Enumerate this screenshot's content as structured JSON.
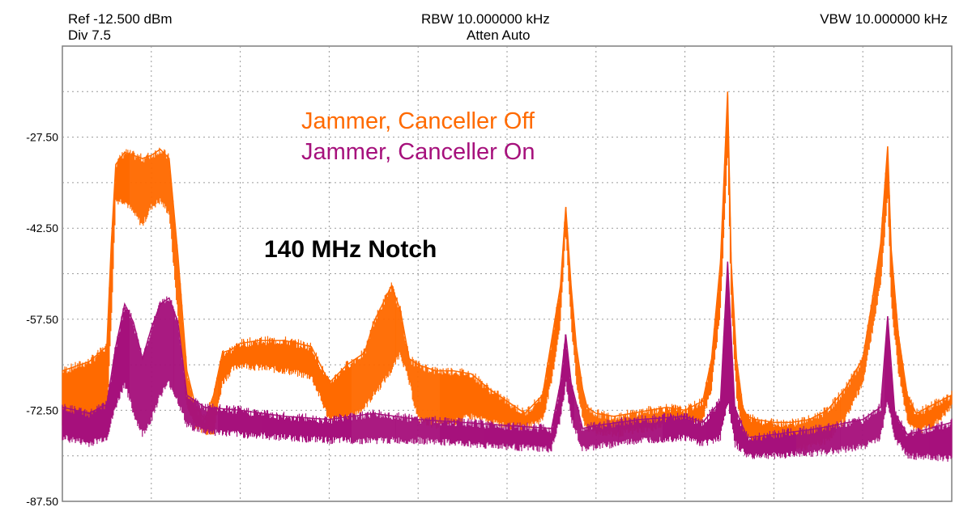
{
  "header": {
    "ref": "Ref -12.500 dBm",
    "div": "Div 7.5",
    "rbw": "RBW 10.000000 kHz",
    "atten": "Atten Auto",
    "vbw": "VBW 10.000000 kHz"
  },
  "colors": {
    "off": "#FF6A00",
    "on": "#A6117C",
    "grid": "#9a9a9a",
    "frame": "#7f7f7f"
  },
  "chart_data": {
    "type": "line",
    "title": "",
    "xlabel": "",
    "ylabel": "",
    "xlim": [
      0,
      100
    ],
    "ylim": [
      -87.5,
      -12.5
    ],
    "y_ticks": [
      "-27.50",
      "-42.50",
      "-57.50",
      "-72.50",
      "-87.50"
    ],
    "grid": true,
    "legend_position": "top-center",
    "annotation": "140 MHz Notch",
    "series": [
      {
        "name": "Jammer, Canceller Off",
        "color": "#FF6A00",
        "band_low": {
          "x": [
            0,
            3,
            5,
            5.5,
            6,
            7,
            8,
            9,
            10,
            11,
            12,
            13,
            14,
            15,
            16,
            17,
            18,
            19,
            20,
            22,
            25,
            28,
            30,
            32,
            34,
            35,
            37,
            38,
            39,
            40,
            42,
            44,
            46,
            48,
            50,
            52,
            54,
            55,
            56,
            56.6,
            57.2,
            57.8,
            58.5,
            59,
            60,
            62,
            64,
            66,
            68,
            70,
            72,
            73,
            74,
            74.8,
            75.2,
            75.8,
            76.5,
            77,
            78,
            80,
            82,
            84,
            86,
            88,
            90,
            91,
            92,
            92.8,
            93.2,
            94,
            95,
            96,
            98,
            100
          ],
          "y": [
            -75,
            -75.5,
            -74,
            -58,
            -38,
            -38,
            -40,
            -42,
            -39,
            -38,
            -40,
            -57,
            -72,
            -75,
            -76,
            -76,
            -68,
            -66,
            -65,
            -65.5,
            -66,
            -67,
            -74,
            -74,
            -72,
            -70,
            -66,
            -63,
            -68,
            -74,
            -75,
            -74.5,
            -73.5,
            -74.5,
            -75,
            -75.5,
            -74,
            -68,
            -58,
            -43,
            -58,
            -68,
            -74,
            -75.5,
            -76,
            -76.5,
            -76,
            -75.5,
            -75,
            -75.5,
            -74,
            -69,
            -56,
            -30,
            -55,
            -70,
            -76,
            -77,
            -78,
            -78.5,
            -79,
            -78.5,
            -77.5,
            -74,
            -68,
            -60,
            -52,
            -37,
            -55,
            -66,
            -74,
            -76,
            -75,
            -72
          ]
        },
        "band_high": {
          "x": [
            0,
            3,
            5,
            5.5,
            6,
            7,
            8,
            9,
            10,
            11,
            12,
            13,
            14,
            15,
            16,
            17,
            18,
            19,
            20,
            22,
            25,
            28,
            30,
            32,
            34,
            35,
            37,
            38,
            39,
            40,
            42,
            44,
            46,
            48,
            50,
            52,
            54,
            55,
            56,
            56.6,
            57.2,
            57.8,
            58.5,
            59,
            60,
            62,
            64,
            66,
            68,
            70,
            72,
            73,
            74,
            74.8,
            75.2,
            75.8,
            76.5,
            77,
            78,
            80,
            82,
            84,
            86,
            88,
            90,
            91,
            92,
            92.8,
            93.2,
            94,
            95,
            96,
            98,
            100
          ],
          "y": [
            -66,
            -64.5,
            -62,
            -45,
            -32,
            -30,
            -30.5,
            -31,
            -30.5,
            -29.5,
            -31,
            -47,
            -66,
            -72,
            -74,
            -70,
            -63,
            -62.5,
            -61.5,
            -61,
            -61,
            -62,
            -68,
            -65,
            -63,
            -58,
            -52,
            -56,
            -64,
            -65,
            -66,
            -66,
            -66.5,
            -69,
            -71,
            -73,
            -70,
            -61,
            -52,
            -39,
            -52,
            -62,
            -69,
            -72,
            -73,
            -73.5,
            -73,
            -72.5,
            -72,
            -72.5,
            -71,
            -64,
            -48,
            -20,
            -48,
            -64,
            -72,
            -73.5,
            -74,
            -74.5,
            -74.5,
            -74,
            -72.5,
            -69,
            -64,
            -55,
            -45,
            -29,
            -46,
            -60,
            -70,
            -73,
            -71.5,
            -70
          ]
        }
      },
      {
        "name": "Jammer, Canceller On",
        "color": "#A6117C",
        "band_low": {
          "x": [
            0,
            3,
            5,
            6,
            7,
            8,
            9,
            10,
            11,
            12,
            13,
            14,
            16,
            20,
            25,
            30,
            35,
            40,
            45,
            50,
            55,
            56,
            56.6,
            57.2,
            58.5,
            60,
            65,
            70,
            72,
            74,
            74.8,
            75.6,
            77,
            80,
            85,
            90,
            92,
            92.8,
            93.6,
            95,
            100
          ],
          "y": [
            -77,
            -78,
            -77,
            -72,
            -68,
            -73,
            -76.5,
            -74,
            -70,
            -68,
            -71,
            -75,
            -76,
            -76.5,
            -77,
            -77.5,
            -77.5,
            -77.5,
            -78,
            -78.5,
            -79,
            -74,
            -68,
            -74,
            -79,
            -78.5,
            -77.5,
            -77,
            -78,
            -77,
            -71,
            -78,
            -80,
            -80,
            -79.5,
            -78.5,
            -77,
            -71,
            -77,
            -80,
            -80.5
          ]
        },
        "band_high": {
          "x": [
            0,
            3,
            5,
            6,
            7,
            8,
            9,
            10,
            11,
            12,
            13,
            14,
            16,
            20,
            25,
            30,
            35,
            40,
            45,
            50,
            55,
            56,
            56.6,
            57.2,
            58.5,
            60,
            65,
            70,
            72,
            74,
            74.8,
            75.6,
            77,
            80,
            85,
            90,
            92,
            92.8,
            93.6,
            95,
            100
          ],
          "y": [
            -72,
            -73,
            -71.5,
            -62,
            -55,
            -58,
            -64,
            -59,
            -55,
            -54,
            -58,
            -70,
            -72,
            -72.5,
            -73.5,
            -74,
            -73,
            -74,
            -74.5,
            -75,
            -75.5,
            -68,
            -60,
            -68,
            -75.5,
            -75,
            -74,
            -73.5,
            -74.5,
            -71,
            -48,
            -72,
            -77,
            -76.5,
            -75.5,
            -74,
            -72,
            -57,
            -73,
            -76.5,
            -74.5
          ]
        }
      }
    ]
  }
}
